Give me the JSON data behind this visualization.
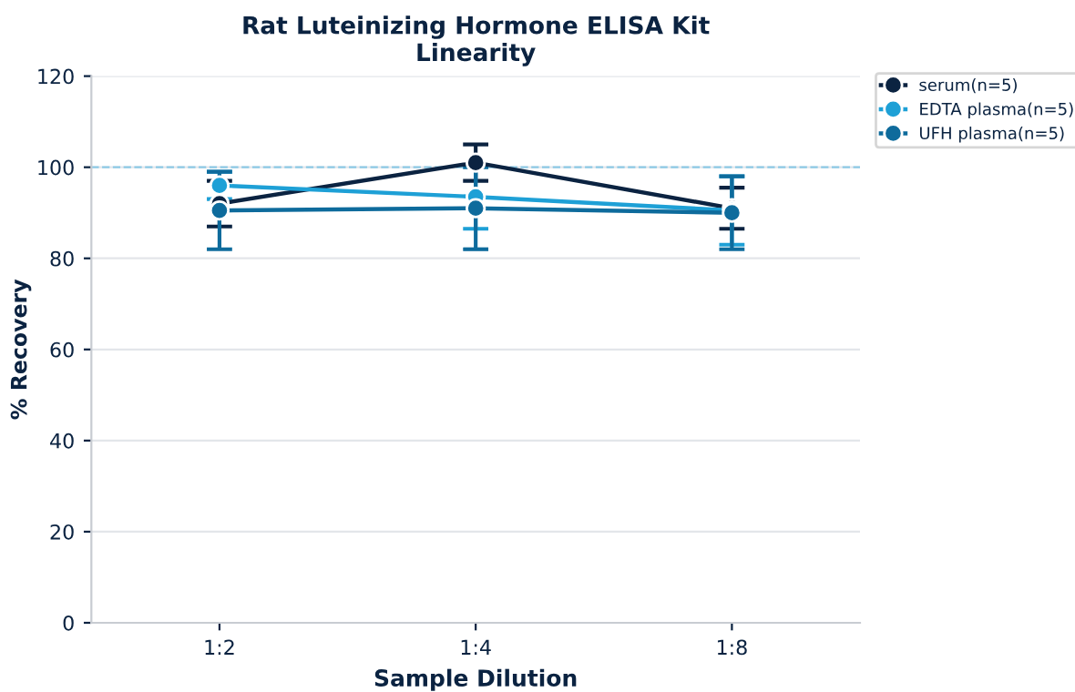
{
  "chart_data": {
    "type": "line",
    "title": "Rat Luteinizing Hormone ELISA Kit\nLinearity",
    "xlabel": "Sample Dilution",
    "ylabel": "% Recovery",
    "categories": [
      "1:2",
      "1:4",
      "1:8"
    ],
    "series": [
      {
        "name": "serum(n=5)",
        "color": "#0b2341",
        "values": [
          92,
          101,
          91
        ],
        "errors": [
          5,
          4,
          4.5
        ]
      },
      {
        "name": "EDTA plasma(n=5)",
        "color": "#1ea0d6",
        "values": [
          96,
          93.5,
          90.5
        ],
        "errors": [
          3,
          7,
          7.5
        ]
      },
      {
        "name": "UFH plasma(n=5)",
        "color": "#0e6b9c",
        "values": [
          90.5,
          91,
          90
        ],
        "errors": [
          8.5,
          9,
          8
        ]
      }
    ],
    "ylim": [
      0,
      120
    ],
    "yticks": [
      0,
      20,
      40,
      60,
      80,
      100,
      120
    ],
    "grid": "y",
    "legend": "top right",
    "marker": "circle",
    "line_style": "solid",
    "ref_lines": [
      {
        "axis": "y",
        "value": 100,
        "color": "#8ecae6",
        "line_style": "dashed"
      }
    ]
  }
}
